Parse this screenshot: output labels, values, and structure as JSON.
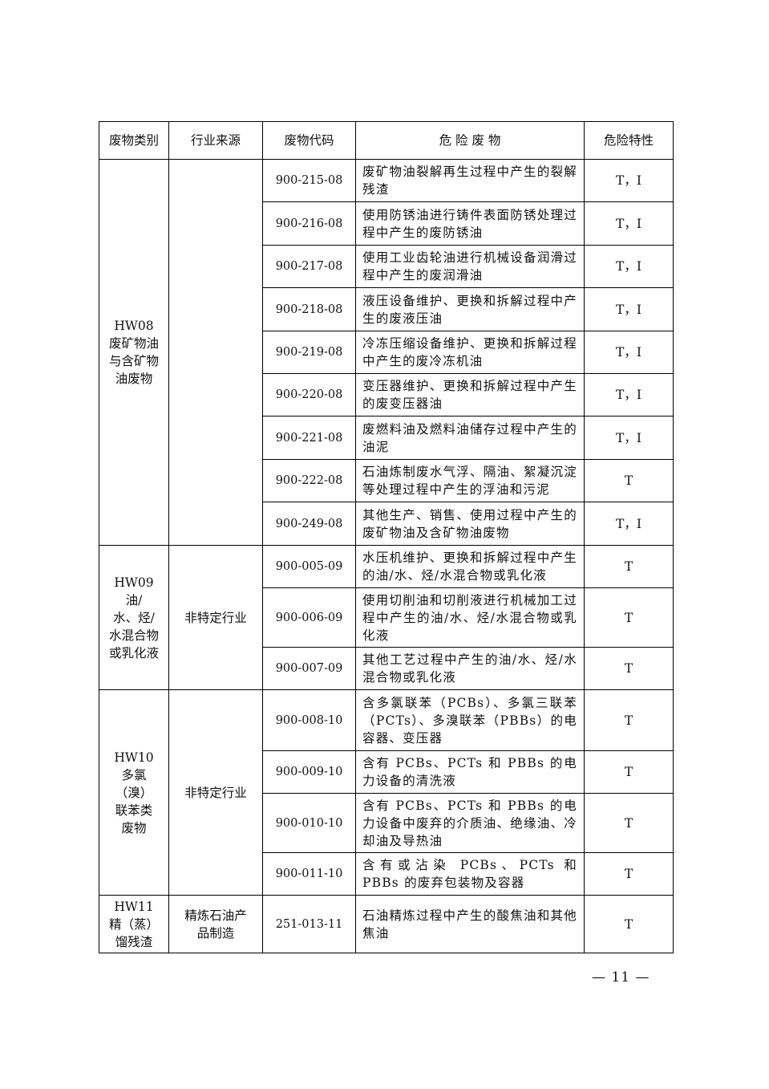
{
  "headers": [
    "废物类别",
    "行业来源",
    "废物代码",
    "危 险 废 物",
    "危险特性"
  ],
  "groups": [
    {
      "category": "HW08 废矿物油与含矿物油废物",
      "industry": "",
      "rows": [
        {
          "code": "900-215-08",
          "waste": "废矿物油裂解再生过程中产生的裂解残渣",
          "hazard": "T，I"
        },
        {
          "code": "900-216-08",
          "waste": "使用防锈油进行铸件表面防锈处理过程中产生的废防锈油",
          "hazard": "T，I"
        },
        {
          "code": "900-217-08",
          "waste": "使用工业齿轮油进行机械设备润滑过程中产生的废润滑油",
          "hazard": "T，I"
        },
        {
          "code": "900-218-08",
          "waste": "液压设备维护、更换和拆解过程中产生的废液压油",
          "hazard": "T，I"
        },
        {
          "code": "900-219-08",
          "waste": "冷冻压缩设备维护、更换和拆解过程中产生的废冷冻机油",
          "hazard": "T，I"
        },
        {
          "code": "900-220-08",
          "waste": "变压器维护、更换和拆解过程中产生的废变压器油",
          "hazard": "T，I"
        },
        {
          "code": "900-221-08",
          "waste": "废燃料油及燃料油储存过程中产生的油泥",
          "hazard": "T，I"
        },
        {
          "code": "900-222-08",
          "waste": "石油炼制废水气浮、隔油、絮凝沉淀等处理过程中产生的浮油和污泥",
          "hazard": "T"
        },
        {
          "code": "900-249-08",
          "waste": "其他生产、销售、使用过程中产生的废矿物油及含矿物油废物",
          "hazard": "T，I"
        }
      ]
    },
    {
      "category": "HW09 油/水、烃/水混合物或乳化液",
      "industry": "非特定行业",
      "rows": [
        {
          "code": "900-005-09",
          "waste": "水压机维护、更换和拆解过程中产生的油/水、烃/水混合物或乳化液",
          "hazard": "T"
        },
        {
          "code": "900-006-09",
          "waste": "使用切削油和切削液进行机械加工过程中产生的油/水、烃/水混合物或乳化液",
          "hazard": "T"
        },
        {
          "code": "900-007-09",
          "waste": "其他工艺过程中产生的油/水、烃/水混合物或乳化液",
          "hazard": "T"
        }
      ]
    },
    {
      "category": "HW10 多氯（溴）联苯类废物",
      "industry": "非特定行业",
      "rows": [
        {
          "code": "900-008-10",
          "waste": "含多氯联苯（PCBs）、多氯三联苯（PCTs）、多溴联苯（PBBs）的电容器、变压器",
          "hazard": "T"
        },
        {
          "code": "900-009-10",
          "waste": "含有 PCBs、PCTs 和 PBBs 的电力设备的清洗液",
          "hazard": "T"
        },
        {
          "code": "900-010-10",
          "waste": "含有 PCBs、PCTs 和 PBBs 的电力设备中废弃的介质油、绝缘油、冷却油及导热油",
          "hazard": "T"
        },
        {
          "code": "900-011-10",
          "waste": "含有或沾染 PCBs、PCTs 和 PBBs 的废弃包装物及容器",
          "hazard": "T"
        }
      ]
    },
    {
      "category": "HW11 精（蒸）馏残渣",
      "industry": "精炼石油产品制造",
      "rows": [
        {
          "code": "251-013-11",
          "waste": "石油精炼过程中产生的酸焦油和其他焦油",
          "hazard": "T"
        }
      ]
    }
  ],
  "page_number": "— 11 —"
}
